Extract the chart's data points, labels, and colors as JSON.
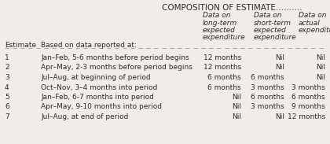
{
  "title": "COMPOSITION OF ESTIMATE..........",
  "col_headers_line1": [
    "Data on",
    "Data on",
    "Data on"
  ],
  "col_headers_line2": [
    "long-term",
    "short-term",
    "actual"
  ],
  "col_headers_line3": [
    "expected",
    "expected",
    "expenditure"
  ],
  "col_headers_line4": [
    "expenditure",
    "expenditure",
    ""
  ],
  "row_header1": "Estimate",
  "row_header2": "Based on data reported at:",
  "rows": [
    [
      "1",
      "Jan–Feb, 5-6 months before period begins",
      "12 months",
      "Nil",
      "Nil"
    ],
    [
      "2",
      "Apr–May, 2-3 months before period begins",
      "12 months",
      "Nil",
      "Nil"
    ],
    [
      "3",
      "Jul–Aug, at beginning of period",
      "6 months",
      "6 months",
      "Nil"
    ],
    [
      "4",
      "Oct–Nov, 3–4 months into period",
      "6 months",
      "3 months",
      "3 months"
    ],
    [
      "5",
      "Jan–Feb, 6-7 months into period",
      "Nil",
      "6 months",
      "6 months"
    ],
    [
      "6",
      "Apr–May, 9-10 months into period",
      "Nil",
      "3 months",
      "9 months"
    ],
    [
      "7",
      "Jul–Aug, at end of period",
      "Nil",
      "Nil",
      "12 months"
    ]
  ],
  "bg_color": "#f0ede8",
  "text_color": "#2a2a2a",
  "font_size": 6.5,
  "title_font_size": 7.5,
  "header_font_size": 6.5
}
